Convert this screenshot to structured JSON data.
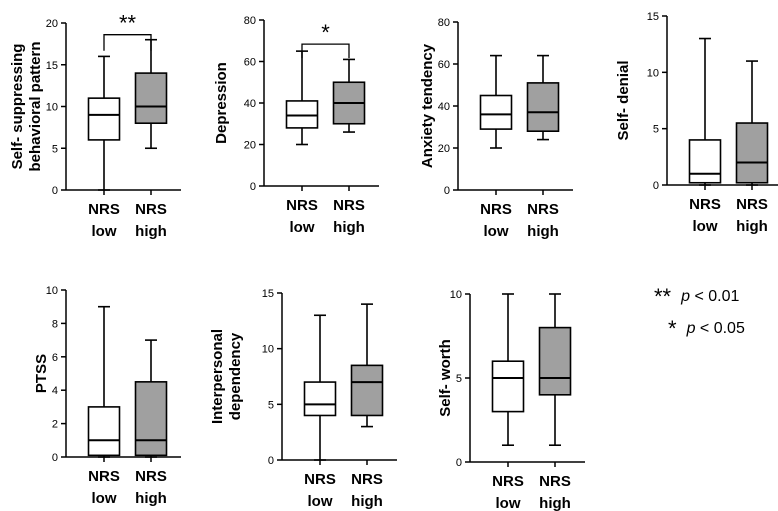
{
  "colors": {
    "low_fill": "#ffffff",
    "high_fill": "#a0a0a0",
    "stroke": "#000000"
  },
  "legend": [
    {
      "stars": "**",
      "p": "p",
      "rel": "< 0.01"
    },
    {
      "stars": "*",
      "p": "p",
      "rel": "< 0.05"
    }
  ],
  "chart_data": [
    {
      "type": "box",
      "ylabel": [
        "Self- suppressing",
        "behavioral pattern"
      ],
      "ylim": [
        0,
        20
      ],
      "yticks": [
        0,
        5,
        10,
        15,
        20
      ],
      "categories": [
        [
          "NRS",
          "low"
        ],
        [
          "NRS",
          "high"
        ]
      ],
      "series": [
        {
          "name": "NRS low",
          "min": 0,
          "q1": 6,
          "median": 9,
          "q3": 11,
          "max": 16
        },
        {
          "name": "NRS high",
          "min": 5,
          "q1": 8,
          "median": 10,
          "q3": 14,
          "max": 18
        }
      ],
      "significance": "**"
    },
    {
      "type": "box",
      "ylabel": [
        "Depression"
      ],
      "ylim": [
        0,
        80
      ],
      "yticks": [
        0,
        20,
        40,
        60,
        80
      ],
      "categories": [
        [
          "NRS",
          "low"
        ],
        [
          "NRS",
          "high"
        ]
      ],
      "series": [
        {
          "name": "NRS low",
          "min": 20,
          "q1": 28,
          "median": 34,
          "q3": 41,
          "max": 65
        },
        {
          "name": "NRS high",
          "min": 26,
          "q1": 30,
          "median": 40,
          "q3": 50,
          "max": 61
        }
      ],
      "significance": "*"
    },
    {
      "type": "box",
      "ylabel": [
        "Anxiety tendency"
      ],
      "ylim": [
        0,
        80
      ],
      "yticks": [
        0,
        20,
        40,
        60,
        80
      ],
      "categories": [
        [
          "NRS",
          "low"
        ],
        [
          "NRS",
          "high"
        ]
      ],
      "series": [
        {
          "name": "NRS low",
          "min": 20,
          "q1": 29,
          "median": 36,
          "q3": 45,
          "max": 64
        },
        {
          "name": "NRS high",
          "min": 24,
          "q1": 28,
          "median": 37,
          "q3": 51,
          "max": 64
        }
      ],
      "significance": ""
    },
    {
      "type": "box",
      "ylabel": [
        "Self- denial"
      ],
      "ylim": [
        0,
        15
      ],
      "yticks": [
        0,
        5,
        10,
        15
      ],
      "categories": [
        [
          "NRS",
          "low"
        ],
        [
          "NRS",
          "high"
        ]
      ],
      "series": [
        {
          "name": "NRS low",
          "min": 0,
          "q1": 0.2,
          "median": 1,
          "q3": 4,
          "max": 13
        },
        {
          "name": "NRS high",
          "min": 0,
          "q1": 0.2,
          "median": 2,
          "q3": 5.5,
          "max": 11
        }
      ],
      "significance": ""
    },
    {
      "type": "box",
      "ylabel": [
        "PTSS"
      ],
      "ylim": [
        0,
        10
      ],
      "yticks": [
        0,
        2,
        4,
        6,
        8,
        10
      ],
      "categories": [
        [
          "NRS",
          "low"
        ],
        [
          "NRS",
          "high"
        ]
      ],
      "series": [
        {
          "name": "NRS low",
          "min": 0,
          "q1": 0.1,
          "median": 1,
          "q3": 3,
          "max": 9
        },
        {
          "name": "NRS high",
          "min": 0,
          "q1": 0.1,
          "median": 1,
          "q3": 4.5,
          "max": 7
        }
      ],
      "significance": ""
    },
    {
      "type": "box",
      "ylabel": [
        "Interpersonal",
        "dependency"
      ],
      "ylim": [
        0,
        15
      ],
      "yticks": [
        0,
        5,
        10,
        15
      ],
      "categories": [
        [
          "NRS",
          "low"
        ],
        [
          "NRS",
          "high"
        ]
      ],
      "series": [
        {
          "name": "NRS low",
          "min": 0,
          "q1": 4,
          "median": 5,
          "q3": 7,
          "max": 13
        },
        {
          "name": "NRS high",
          "min": 3,
          "q1": 4,
          "median": 7,
          "q3": 8.5,
          "max": 14
        }
      ],
      "significance": ""
    },
    {
      "type": "box",
      "ylabel": [
        "Self- worth"
      ],
      "ylim": [
        0,
        10
      ],
      "yticks": [
        0,
        5,
        10
      ],
      "categories": [
        [
          "NRS",
          "low"
        ],
        [
          "NRS",
          "high"
        ]
      ],
      "series": [
        {
          "name": "NRS low",
          "min": 1,
          "q1": 3,
          "median": 5,
          "q3": 6,
          "max": 10
        },
        {
          "name": "NRS high",
          "min": 1,
          "q1": 4,
          "median": 5,
          "q3": 8,
          "max": 10
        }
      ],
      "significance": ""
    }
  ]
}
